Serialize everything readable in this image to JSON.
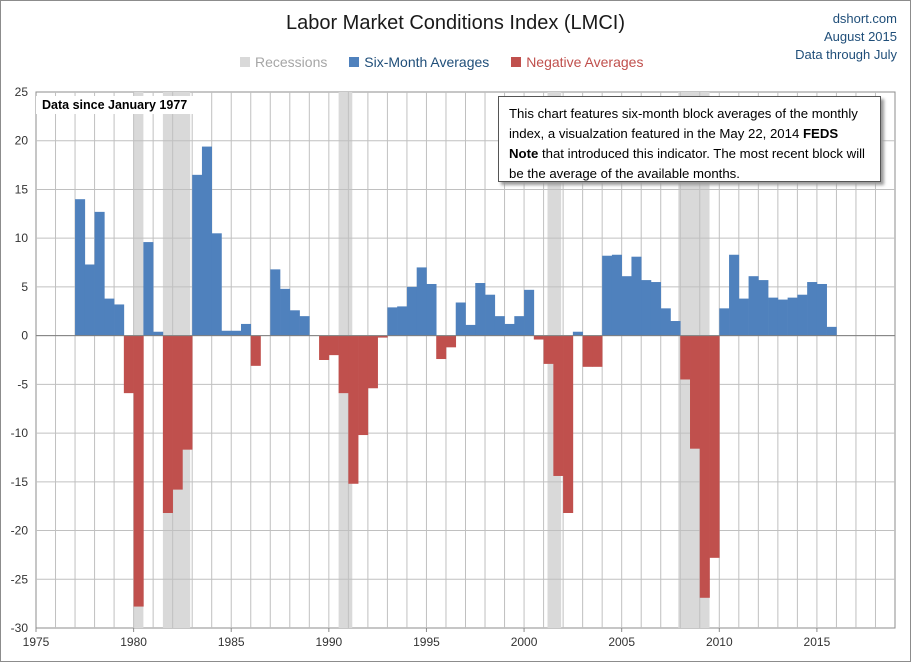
{
  "header": {
    "title": "Labor Market Conditions Index  (LMCI)",
    "source_lines": [
      "dshort.com",
      "August 2015",
      "Data through July"
    ]
  },
  "legend": {
    "items": [
      {
        "label": "Recessions",
        "color": "#d9d9d9",
        "text_color": "#a6a6a6"
      },
      {
        "label": "Six-Month Averages",
        "color": "#4f81bd",
        "text_color": "#1f4e79"
      },
      {
        "label": "Negative Averages",
        "color": "#c0504d",
        "text_color": "#c0504d"
      }
    ]
  },
  "annotations": {
    "data_since": "Data since January 1977",
    "note_before": "This chart features six-month block averages of the monthly index, a visualzation featured in the May 22, 2014 ",
    "note_bold": "FEDS Note",
    "note_after": " that introduced  this indicator. The most recent block will be the average of the available months."
  },
  "chart_data": {
    "type": "bar",
    "title": "Labor Market Conditions Index  (LMCI)",
    "x_axis": {
      "min": 1975,
      "max": 2019,
      "ticks": [
        1975,
        1980,
        1985,
        1990,
        1995,
        2000,
        2005,
        2010,
        2015
      ]
    },
    "y_axis": {
      "min": -30,
      "max": 25,
      "ticks": [
        -30,
        -25,
        -20,
        -15,
        -10,
        -5,
        0,
        5,
        10,
        15,
        20,
        25
      ]
    },
    "grid": true,
    "recessions": [
      [
        1980.0,
        1980.5
      ],
      [
        1981.5,
        1982.9
      ],
      [
        1990.5,
        1991.2
      ],
      [
        2001.2,
        2001.9
      ],
      [
        2007.9,
        2009.5
      ]
    ],
    "colors": {
      "positive": "#4f81bd",
      "negative": "#c0504d",
      "recession": "#d9d9d9",
      "grid": "#c0c0c0"
    },
    "series": {
      "name": "Six-Month Averages",
      "x": [
        1977.0,
        1977.5,
        1978.0,
        1978.5,
        1979.0,
        1979.5,
        1980.0,
        1980.5,
        1981.0,
        1981.5,
        1982.0,
        1982.5,
        1983.0,
        1983.5,
        1984.0,
        1984.5,
        1985.0,
        1985.5,
        1986.0,
        1986.5,
        1987.0,
        1987.5,
        1988.0,
        1988.5,
        1989.0,
        1989.5,
        1990.0,
        1990.5,
        1991.0,
        1991.5,
        1992.0,
        1992.5,
        1993.0,
        1993.5,
        1994.0,
        1994.5,
        1995.0,
        1995.5,
        1996.0,
        1996.5,
        1997.0,
        1997.5,
        1998.0,
        1998.5,
        1999.0,
        1999.5,
        2000.0,
        2000.5,
        2001.0,
        2001.5,
        2002.0,
        2002.5,
        2003.0,
        2003.5,
        2004.0,
        2004.5,
        2005.0,
        2005.5,
        2006.0,
        2006.5,
        2007.0,
        2007.5,
        2008.0,
        2008.5,
        2009.0,
        2009.5,
        2010.0,
        2010.5,
        2011.0,
        2011.5,
        2012.0,
        2012.5,
        2013.0,
        2013.5,
        2014.0,
        2014.5,
        2015.0,
        2015.5
      ],
      "values": [
        14.0,
        7.3,
        12.7,
        3.8,
        3.2,
        -5.9,
        -27.8,
        9.6,
        0.4,
        -18.2,
        -15.8,
        -11.7,
        16.5,
        19.4,
        10.5,
        0.5,
        0.5,
        1.2,
        -3.1,
        0.0,
        6.8,
        4.8,
        2.6,
        2.0,
        0.0,
        -2.5,
        -2.0,
        -5.9,
        -15.2,
        -10.2,
        -5.4,
        -0.2,
        2.9,
        3.0,
        5.0,
        7.0,
        5.3,
        -2.4,
        -1.2,
        3.4,
        1.1,
        5.4,
        4.2,
        2.0,
        1.2,
        2.0,
        4.7,
        -0.4,
        -2.9,
        -14.4,
        -18.2,
        0.4,
        -3.2,
        -3.2,
        8.2,
        8.3,
        6.1,
        8.1,
        5.7,
        5.5,
        2.8,
        1.5,
        -4.5,
        -11.6,
        -26.9,
        -22.8,
        2.8,
        8.3,
        3.8,
        6.1,
        5.7,
        3.9,
        3.7,
        3.9,
        4.2,
        5.5,
        5.3,
        0.9
      ]
    }
  }
}
